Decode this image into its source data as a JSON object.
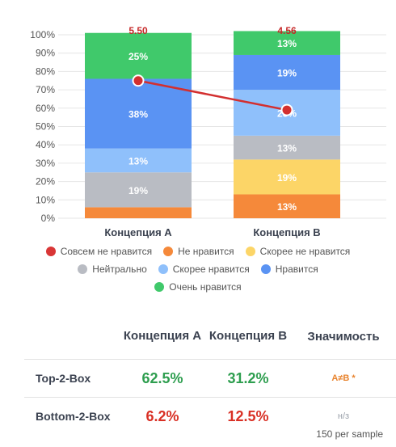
{
  "chart_data": {
    "type": "bar",
    "stacked": true,
    "categories": [
      "Концепция A",
      "Концепция B"
    ],
    "series": [
      {
        "name": "Совсем не нравится",
        "color": "#d93636",
        "values": [
          0,
          0
        ]
      },
      {
        "name": "Не нравится",
        "color": "#f5893a",
        "values": [
          6,
          13
        ]
      },
      {
        "name": "Скорее не нравится",
        "color": "#fcd567",
        "values": [
          0,
          19
        ]
      },
      {
        "name": "Нейтрально",
        "color": "#b9bcc3",
        "values": [
          19,
          13
        ]
      },
      {
        "name": "Скорее нравится",
        "color": "#8fc0fb",
        "values": [
          13,
          25
        ]
      },
      {
        "name": "Нравится",
        "color": "#5a93f3",
        "values": [
          38,
          19
        ]
      },
      {
        "name": "Очень нравится",
        "color": "#40c96b",
        "values": [
          25,
          13
        ]
      }
    ],
    "segment_labels": [
      [
        "",
        "",
        "",
        "19%",
        "13%",
        "38%",
        "25%"
      ],
      [
        "",
        "13%",
        "19%",
        "13%",
        "25%",
        "19%",
        "13%"
      ]
    ],
    "means": [
      "5.50",
      "4.56"
    ],
    "mean_line": {
      "color": "#d32f2f",
      "values_pct": [
        75,
        59
      ]
    },
    "yticks": [
      "0%",
      "10%",
      "20%",
      "30%",
      "40%",
      "50%",
      "60%",
      "70%",
      "80%",
      "90%",
      "100%"
    ],
    "ylim": [
      0,
      100
    ],
    "grid": true,
    "legend_position": "bottom"
  },
  "summary": {
    "headers": {
      "a": "Концепция A",
      "b": "Концепция B",
      "sig": "Значимость"
    },
    "rows": [
      {
        "label": "Top-2-Box",
        "a": "62.5%",
        "b": "31.2%",
        "sig": "A≠B *"
      },
      {
        "label": "Bottom-2-Box",
        "a": "6.2%",
        "b": "12.5%",
        "sig": "н/з"
      }
    ]
  },
  "footnote": "150 per sample"
}
